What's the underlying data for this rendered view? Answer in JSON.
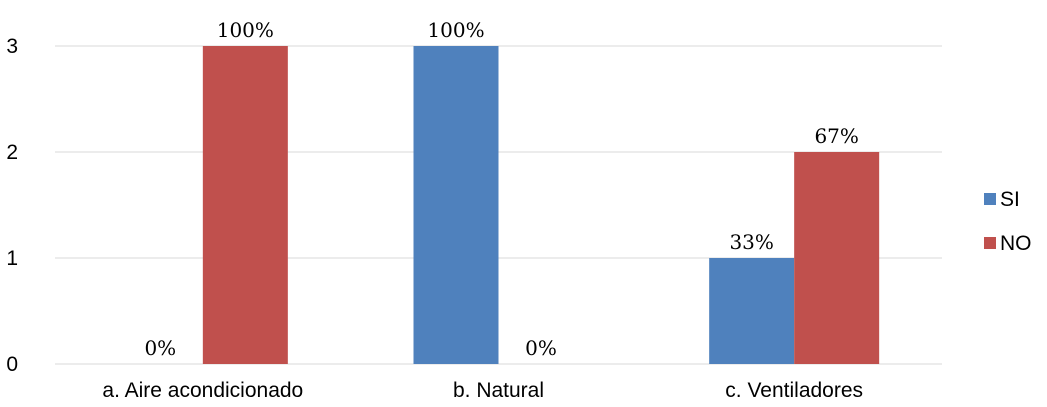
{
  "chart_data": {
    "type": "bar",
    "categories": [
      "a. Aire acondicionado",
      "b. Natural",
      "c. Ventiladores"
    ],
    "series": [
      {
        "name": "SI",
        "color": "#4f81bd",
        "values": [
          0,
          3,
          1
        ],
        "labels": [
          "0%",
          "100%",
          "33%"
        ]
      },
      {
        "name": "NO",
        "color": "#c0504d",
        "values": [
          3,
          0,
          2
        ],
        "labels": [
          "100%",
          "0%",
          "67%"
        ]
      }
    ],
    "yticks": [
      "0",
      "1",
      "2",
      "3"
    ],
    "ylim": [
      0,
      3
    ],
    "grid": true,
    "legend_position": "right",
    "title": "",
    "xlabel": "",
    "ylabel": ""
  }
}
